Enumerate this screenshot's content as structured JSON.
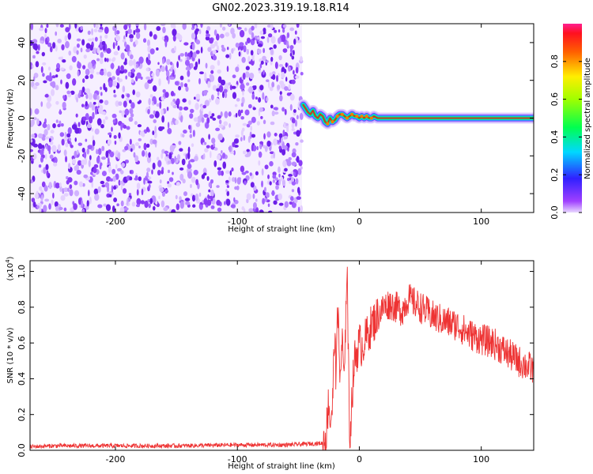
{
  "figure": {
    "title": "GN02.2023.319.19.18.R14"
  },
  "chart_data": [
    {
      "type": "heatmap",
      "xlabel": "Height of straight line (km)",
      "ylabel": "Frequency (Hz)",
      "xlim": [
        -270,
        143
      ],
      "ylim": [
        -50,
        50
      ],
      "x_ticks": [
        -200,
        -100,
        0,
        100
      ],
      "x_tick_labels": [
        "-200",
        "-100",
        "0",
        "100"
      ],
      "y_ticks": [
        -40,
        -20,
        0,
        20,
        40
      ],
      "y_tick_labels": [
        "-40",
        "-20",
        "0",
        "20",
        "40"
      ],
      "noise_region_x": [
        -270,
        -47
      ],
      "signal_track": {
        "x": [
          -46,
          -44,
          -42,
          -40,
          -38,
          -36,
          -34,
          -32,
          -30,
          -28,
          -26,
          -24,
          -22,
          -20,
          -18,
          -16,
          -14,
          -12,
          -10,
          -8,
          -6,
          -4,
          -2,
          0,
          2,
          4,
          6,
          8,
          10,
          12,
          15,
          20,
          30,
          40,
          50,
          60,
          80,
          100,
          120,
          143
        ],
        "freq": [
          7,
          5,
          3,
          2,
          4,
          1,
          0,
          2,
          1,
          -2,
          -3,
          0,
          -2,
          -1,
          1,
          2,
          2,
          1,
          0,
          1,
          2,
          1,
          1,
          0,
          1,
          0,
          1,
          0,
          0,
          1,
          0,
          0,
          0,
          0,
          0,
          0,
          0,
          0,
          0,
          0
        ]
      },
      "colorbar": {
        "label": "Normalized spectral amplitude",
        "range": [
          0.0,
          1.0
        ],
        "ticks": [
          0.0,
          0.2,
          0.4,
          0.6,
          0.8
        ],
        "tick_labels": [
          "0.0",
          "0.2",
          "0.4",
          "0.6",
          "0.8"
        ]
      },
      "grid": false
    },
    {
      "type": "line",
      "xlabel": "Height of straight line (km)",
      "ylabel": "SNR (10 * v/v)",
      "y_exponent_label": "(x10",
      "y_exponent_power": "4",
      "y_exponent_close": ")",
      "xlim": [
        -270,
        143
      ],
      "ylim": [
        0,
        1.06
      ],
      "x_ticks": [
        -200,
        -100,
        0,
        100
      ],
      "x_tick_labels": [
        "-200",
        "-100",
        "0",
        "100"
      ],
      "y_ticks": [
        0.0,
        0.2,
        0.4,
        0.6,
        0.8,
        1.0
      ],
      "y_tick_labels": [
        "0.0",
        "0.2",
        "0.4",
        "0.6",
        "0.8",
        "1.0"
      ],
      "series": [
        {
          "color": "#ee3333",
          "x": [
            -270,
            -250,
            -200,
            -150,
            -100,
            -60,
            -30,
            -27,
            -25,
            -24,
            -22,
            -20,
            -19,
            -18,
            -16,
            -14,
            -12,
            -11,
            -10,
            -9,
            -8,
            -6,
            -4,
            -2,
            0,
            2,
            5,
            10,
            15,
            20,
            25,
            30,
            35,
            40,
            50,
            60,
            70,
            80,
            90,
            100,
            110,
            120,
            130,
            143
          ],
          "y": [
            0.02,
            0.025,
            0.025,
            0.025,
            0.03,
            0.03,
            0.04,
            0.1,
            0.3,
            0.15,
            0.25,
            0.7,
            0.3,
            0.9,
            0.4,
            0.6,
            0.35,
            0.85,
            1.05,
            0.55,
            0.05,
            0.3,
            0.5,
            0.55,
            0.6,
            0.58,
            0.62,
            0.7,
            0.75,
            0.8,
            0.82,
            0.8,
            0.78,
            0.85,
            0.8,
            0.75,
            0.72,
            0.7,
            0.65,
            0.62,
            0.6,
            0.55,
            0.5,
            0.45
          ]
        }
      ],
      "grid": false
    }
  ]
}
